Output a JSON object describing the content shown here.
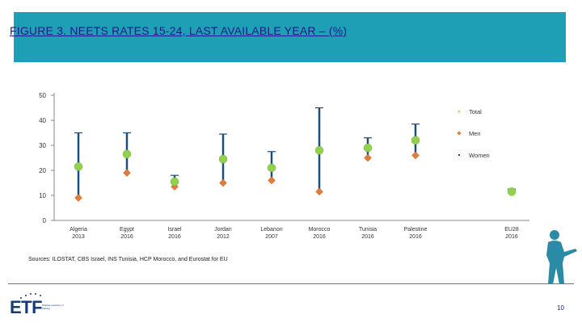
{
  "slide": {
    "title": "FIGURE 3. NEETS RATES 15-24, LAST AVAILABLE YEAR – (%)",
    "source": "Sources: ILOSTAT, CBS Israel, INS Tunisia, HCP Morocco, and Eurostat for EU",
    "page_number": "10",
    "logo_text": "ETF",
    "logo_tagline": "Sharing expertise in training"
  },
  "chart_data": {
    "type": "scatter",
    "categories": [
      {
        "name": "Algeria",
        "year": "2013"
      },
      {
        "name": "Egypt",
        "year": "2016"
      },
      {
        "name": "Israel",
        "year": "2016"
      },
      {
        "name": "Jordan",
        "year": "2012"
      },
      {
        "name": "Lebanon",
        "year": "2007"
      },
      {
        "name": "Morocco",
        "year": "2016"
      },
      {
        "name": "Tunisia",
        "year": "2016"
      },
      {
        "name": "Palestine",
        "year": "2016"
      },
      {
        "name": "EU28",
        "year": "2016"
      }
    ],
    "series": [
      {
        "name": "Total",
        "color": "#92d050",
        "marker": "circle",
        "values": [
          21.5,
          26.5,
          15.5,
          24.5,
          21,
          28,
          29,
          32,
          11.5
        ]
      },
      {
        "name": "Men",
        "color": "#e07b39",
        "marker": "diamond",
        "values": [
          9,
          19,
          13.5,
          15,
          16,
          11.5,
          25,
          26,
          11.5
        ]
      },
      {
        "name": "Women",
        "color": "#1f4e79",
        "marker": "bar",
        "values": [
          35,
          35,
          18,
          34.5,
          27.5,
          45,
          33,
          38.5,
          12.5
        ]
      }
    ],
    "ylim": [
      0,
      50
    ],
    "yticks": [
      0,
      10,
      20,
      30,
      40,
      50
    ],
    "legend": [
      "Total",
      "Men",
      "Women"
    ],
    "legend_position": "right",
    "grid": false
  }
}
